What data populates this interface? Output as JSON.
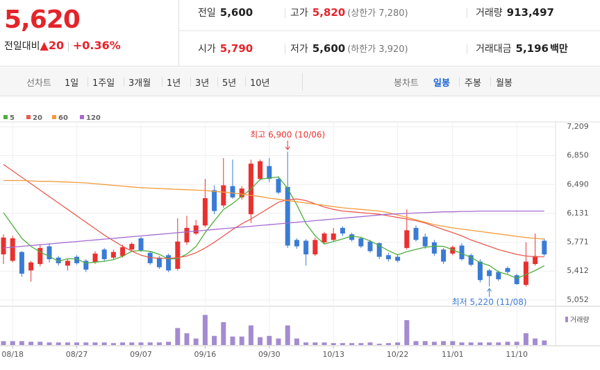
{
  "quote": {
    "price": "5,620",
    "change_label": "전일대비",
    "change": "20",
    "change_rate": "+0.36%",
    "stats": [
      {
        "label": "전일",
        "value": "5,600"
      },
      {
        "label": "고가",
        "value": "5,820",
        "note": "(상한가 7,280)"
      },
      {
        "label": "거래량",
        "value": "913,497"
      },
      {
        "label": "시가",
        "value": "5,790"
      },
      {
        "label": "저가",
        "value": "5,600",
        "note": "(하한가 3,920)"
      },
      {
        "label": "거래대금",
        "value": "5,196",
        "unit": "백만"
      }
    ]
  },
  "tabs": {
    "line_label": "선차트",
    "line_periods": [
      "1일",
      "1주일",
      "3개월",
      "1년",
      "3년",
      "5년",
      "10년"
    ],
    "candle_label": "봉차트",
    "candle_periods": [
      "일봉",
      "주봉",
      "월봉"
    ],
    "selected": "일봉"
  },
  "chart_data": {
    "type": "candlestick",
    "categories": [
      null,
      "08/18",
      null,
      null,
      null,
      null,
      null,
      null,
      "08/27",
      null,
      null,
      null,
      null,
      null,
      null,
      "09/07",
      null,
      null,
      null,
      null,
      null,
      null,
      "09/16",
      null,
      null,
      null,
      null,
      null,
      null,
      "09/30",
      null,
      null,
      null,
      null,
      null,
      null,
      "10/13",
      null,
      null,
      null,
      null,
      null,
      null,
      "10/22",
      null,
      null,
      null,
      null,
      null,
      "11/01",
      null,
      null,
      null,
      null,
      null,
      null,
      "11/10",
      null,
      null,
      null
    ],
    "open": [
      5620,
      5540,
      5650,
      5420,
      5500,
      5720,
      5580,
      5480,
      5590,
      5540,
      5520,
      5680,
      5580,
      5600,
      5680,
      5820,
      5640,
      5580,
      5610,
      5440,
      5770,
      5880,
      5980,
      6420,
      6230,
      6470,
      6330,
      6120,
      6560,
      6720,
      6560,
      6460,
      5800,
      5790,
      5620,
      5770,
      5800,
      5950,
      5870,
      5820,
      5780,
      5760,
      5610,
      5590,
      5700,
      5950,
      5840,
      5770,
      5680,
      5630,
      5730,
      5610,
      5530,
      5420,
      5400,
      5450,
      5360,
      5240,
      5500,
      5790
    ],
    "high": [
      5870,
      5850,
      5660,
      5540,
      5740,
      5760,
      5600,
      5560,
      5610,
      5560,
      5660,
      5700,
      5680,
      5740,
      5770,
      5840,
      5660,
      5600,
      5630,
      6070,
      6100,
      6050,
      6560,
      6480,
      6820,
      6800,
      6470,
      6800,
      6800,
      6820,
      6590,
      6900,
      5820,
      5810,
      5830,
      5900,
      5950,
      5970,
      5890,
      5840,
      5800,
      5770,
      5640,
      5610,
      6180,
      5980,
      5880,
      5800,
      5700,
      5730,
      5760,
      5630,
      5560,
      5440,
      5420,
      5470,
      5380,
      5770,
      5880,
      5820
    ],
    "low": [
      5500,
      5520,
      5340,
      5280,
      5470,
      5520,
      5480,
      5420,
      5490,
      5400,
      5500,
      5530,
      5560,
      5580,
      5660,
      5650,
      5490,
      5440,
      5400,
      5420,
      5740,
      5860,
      5960,
      6120,
      6200,
      6310,
      6300,
      6010,
      6540,
      6520,
      6370,
      5700,
      5690,
      5480,
      5600,
      5750,
      5780,
      5850,
      5780,
      5700,
      5640,
      5560,
      5530,
      5520,
      5680,
      5780,
      5690,
      5600,
      5500,
      5610,
      5540,
      5470,
      5270,
      5220,
      5290,
      5380,
      5240,
      5220,
      5480,
      5600
    ],
    "close": [
      5830,
      5820,
      5380,
      5520,
      5700,
      5560,
      5510,
      5540,
      5510,
      5430,
      5630,
      5560,
      5650,
      5710,
      5750,
      5670,
      5510,
      5460,
      5420,
      5780,
      5950,
      5980,
      6320,
      6160,
      6480,
      6330,
      6440,
      6750,
      6780,
      6560,
      6390,
      5730,
      5720,
      5620,
      5800,
      5880,
      5880,
      5880,
      5800,
      5720,
      5660,
      5590,
      5560,
      5540,
      5920,
      5800,
      5720,
      5630,
      5530,
      5710,
      5560,
      5490,
      5300,
      5350,
      5310,
      5400,
      5250,
      5530,
      5600,
      5620
    ],
    "up_color": "#e8312f",
    "down_color": "#3a7bd5",
    "series": [
      {
        "name": "5",
        "color": "#4cae3d",
        "values": [
          6140,
          5980,
          5820,
          5720,
          5650,
          5596,
          5534,
          5566,
          5564,
          5510,
          5524,
          5534,
          5556,
          5596,
          5660,
          5668,
          5658,
          5620,
          5562,
          5568,
          5624,
          5718,
          5890,
          6038,
          6178,
          6254,
          6346,
          6432,
          6556,
          6572,
          6584,
          6442,
          6236,
          6004,
          5852,
          5750,
          5780,
          5812,
          5848,
          5832,
          5788,
          5730,
          5666,
          5614,
          5654,
          5682,
          5708,
          5722,
          5720,
          5678,
          5630,
          5584,
          5518,
          5482,
          5402,
          5370,
          5322,
          5368,
          5418,
          5480
        ]
      },
      {
        "name": "20",
        "color": "#ea5a50",
        "values": [
          6740,
          6660,
          6580,
          6500,
          6420,
          6340,
          6260,
          6180,
          6100,
          6020,
          5940,
          5860,
          5790,
          5720,
          5660,
          5610,
          5580,
          5570,
          5570,
          5580,
          5600,
          5640,
          5700,
          5770,
          5850,
          5930,
          6000,
          6060,
          6130,
          6200,
          6270,
          6300,
          6310,
          6290,
          6250,
          6210,
          6180,
          6160,
          6150,
          6140,
          6130,
          6120,
          6100,
          6080,
          6060,
          6040,
          6010,
          5970,
          5930,
          5890,
          5850,
          5800,
          5760,
          5720,
          5680,
          5650,
          5620,
          5600,
          5590,
          5590
        ]
      },
      {
        "name": "60",
        "color": "#f39a3b",
        "values": [
          6540,
          6540,
          6540,
          6535,
          6530,
          6530,
          6525,
          6520,
          6515,
          6510,
          6500,
          6490,
          6480,
          6470,
          6460,
          6450,
          6445,
          6440,
          6435,
          6430,
          6425,
          6420,
          6415,
          6405,
          6395,
          6385,
          6370,
          6355,
          6340,
          6320,
          6305,
          6290,
          6275,
          6260,
          6245,
          6230,
          6215,
          6200,
          6190,
          6180,
          6170,
          6160,
          6140,
          6110,
          6080,
          6050,
          6020,
          5990,
          5970,
          5950,
          5935,
          5920,
          5905,
          5890,
          5875,
          5860,
          5845,
          5830,
          5820,
          5810
        ]
      },
      {
        "name": "120",
        "color": "#a56bd1",
        "values": [
          5700,
          5710,
          5720,
          5730,
          5740,
          5750,
          5760,
          5770,
          5780,
          5790,
          5800,
          5810,
          5820,
          5830,
          5840,
          5850,
          5860,
          5870,
          5880,
          5890,
          5900,
          5910,
          5920,
          5930,
          5940,
          5950,
          5960,
          5970,
          5980,
          5990,
          6000,
          6010,
          6020,
          6030,
          6040,
          6050,
          6060,
          6070,
          6080,
          6090,
          6100,
          6110,
          6120,
          6125,
          6130,
          6135,
          6140,
          6145,
          6150,
          6150,
          6155,
          6155,
          6160,
          6160,
          6160,
          6160,
          6160,
          6160,
          6160,
          6160
        ]
      }
    ],
    "volume": {
      "name": "거래량",
      "color": "#a48bd0",
      "ylim": [
        0,
        6600000
      ],
      "values": [
        780000,
        780000,
        780000,
        650000,
        650000,
        520000,
        520000,
        520000,
        520000,
        520000,
        520000,
        520000,
        390000,
        520000,
        520000,
        520000,
        520000,
        520000,
        650000,
        3380000,
        2340000,
        1300000,
        5980000,
        1820000,
        4550000,
        1690000,
        1690000,
        3900000,
        1560000,
        1820000,
        1300000,
        3900000,
        1300000,
        520000,
        520000,
        520000,
        390000,
        390000,
        390000,
        390000,
        520000,
        260000,
        390000,
        520000,
        4940000,
        780000,
        780000,
        650000,
        780000,
        780000,
        520000,
        520000,
        520000,
        520000,
        520000,
        650000,
        650000,
        2340000,
        1300000,
        913497
      ]
    },
    "ylim": [
      4974,
      7321
    ],
    "yticks": [
      {
        "value": 7209,
        "label": "7,209"
      },
      {
        "value": 6850,
        "label": "6,850"
      },
      {
        "value": 6490,
        "label": "6,490"
      },
      {
        "value": 6131,
        "label": "6,131"
      },
      {
        "value": 5771,
        "label": "5,771"
      },
      {
        "value": 5412,
        "label": "5,412"
      },
      {
        "value": 5052,
        "label": "5,052"
      }
    ],
    "grid": true,
    "annotations": [
      {
        "text": "최고 6,900 (10/06)",
        "color": "#e8312f",
        "at": "high"
      },
      {
        "text": "최저 5,220 (11/08)",
        "color": "#3a7bd5",
        "at": "low"
      }
    ]
  }
}
